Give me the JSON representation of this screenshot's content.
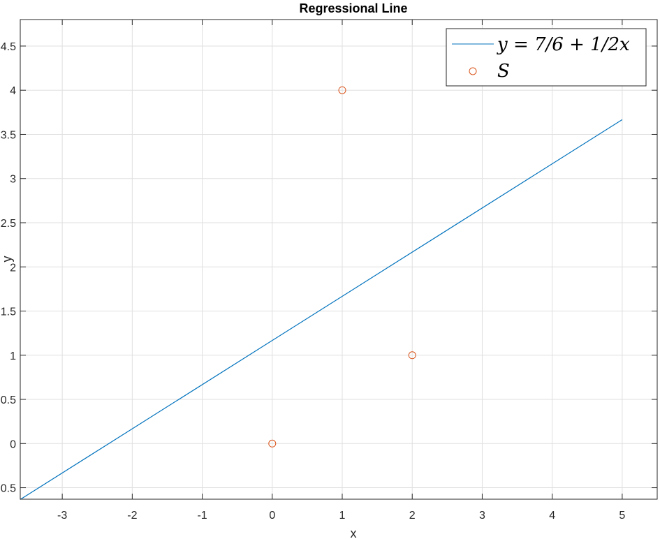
{
  "chart_data": {
    "type": "line",
    "title": "Regressional Line",
    "xlabel": "x",
    "ylabel": "y",
    "xlim": [
      -3.6,
      5.5
    ],
    "ylim": [
      -0.63,
      4.8
    ],
    "xticks": [
      -3,
      -2,
      -1,
      0,
      1,
      2,
      3,
      4,
      5
    ],
    "yticks": [
      -0.5,
      0,
      0.5,
      1,
      1.5,
      2,
      2.5,
      3,
      3.5,
      4,
      4.5
    ],
    "grid": true,
    "legend_position": "top-right",
    "series": [
      {
        "name": "y = 7/6 + 1/2x",
        "kind": "line",
        "x": [
          -3.6,
          5
        ],
        "y": [
          -0.633,
          3.667
        ],
        "color": "#0072BD"
      },
      {
        "name": "S",
        "kind": "scatter",
        "marker": "circle",
        "x": [
          0,
          1,
          2
        ],
        "y": [
          0,
          4,
          1
        ],
        "color": "#D95319"
      }
    ]
  }
}
